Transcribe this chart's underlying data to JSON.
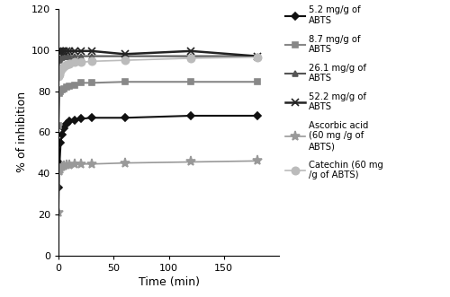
{
  "xlabel": "Time (min)",
  "ylabel": "% of inhibition",
  "xlim": [
    0,
    200
  ],
  "ylim": [
    0,
    120
  ],
  "xticks": [
    0,
    50,
    100,
    150
  ],
  "yticks": [
    0,
    20,
    40,
    60,
    80,
    100,
    120
  ],
  "series": [
    {
      "label": "5.2 mg/g of\nABTS",
      "color": "#111111",
      "marker": "D",
      "markersize": 4,
      "linewidth": 1.5,
      "markevery": [
        0,
        4,
        6,
        8,
        9,
        10,
        11,
        12
      ],
      "x": [
        0,
        1,
        2,
        3,
        5,
        7,
        10,
        15,
        20,
        30,
        60,
        120,
        180
      ],
      "y": [
        33,
        45,
        55,
        59,
        62,
        64,
        65.5,
        66,
        66.5,
        67,
        67,
        68,
        68
      ]
    },
    {
      "label": "8.7 mg/g of\nABTS",
      "color": "#888888",
      "marker": "s",
      "markersize": 5,
      "linewidth": 1.5,
      "x": [
        0,
        1,
        2,
        3,
        5,
        7,
        10,
        15,
        20,
        30,
        60,
        120,
        180
      ],
      "y": [
        63,
        79,
        80,
        80.5,
        81,
        82,
        82.5,
        83,
        84,
        84,
        84.5,
        84.5,
        84.5
      ]
    },
    {
      "label": "26.1 mg/g of\nABTS",
      "color": "#555555",
      "marker": "^",
      "markersize": 5,
      "linewidth": 1.5,
      "x": [
        0,
        1,
        2,
        3,
        5,
        7,
        10,
        15,
        20,
        30,
        60,
        120,
        180
      ],
      "y": [
        92,
        95,
        96,
        96.5,
        97,
        97,
        97,
        97,
        97,
        97,
        97,
        97,
        97
      ]
    },
    {
      "label": "52.2 mg/g of\nABTS",
      "color": "#222222",
      "marker": "x",
      "markersize": 6,
      "linewidth": 1.8,
      "x": [
        0,
        1,
        2,
        3,
        5,
        7,
        10,
        15,
        20,
        30,
        60,
        120,
        180
      ],
      "y": [
        99,
        99.5,
        99.5,
        99.5,
        99.5,
        99.5,
        99.5,
        99.5,
        99.5,
        99.5,
        98,
        99.5,
        97
      ]
    },
    {
      "label": "Ascorbic acid\n(60 mg /g of\nABTS)",
      "color": "#999999",
      "marker": "*",
      "markersize": 8,
      "linewidth": 1.2,
      "x": [
        0,
        1,
        2,
        3,
        5,
        7,
        10,
        15,
        20,
        30,
        60,
        120,
        180
      ],
      "y": [
        21,
        41,
        42,
        43,
        43.5,
        44,
        44,
        44.5,
        44.5,
        44.5,
        45,
        45.5,
        46
      ]
    },
    {
      "label": "Catechin (60 mg\n/g of ABTS)",
      "color": "#bbbbbb",
      "marker": "o",
      "markersize": 6,
      "linewidth": 1.2,
      "x": [
        0,
        1,
        2,
        3,
        5,
        7,
        10,
        15,
        20,
        30,
        60,
        120,
        180
      ],
      "y": [
        87,
        88,
        90,
        91,
        92,
        93,
        93.5,
        94,
        94,
        94.5,
        95,
        96,
        96.5
      ]
    }
  ]
}
